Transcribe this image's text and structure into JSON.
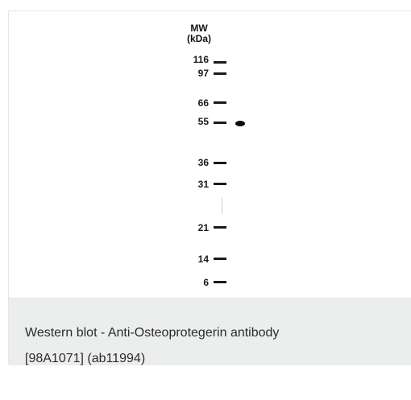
{
  "figure": {
    "mw_header": "MW",
    "unit_header": "(kDa)",
    "markers": [
      "116",
      "97",
      "66",
      "55",
      "36",
      "31",
      "21",
      "14",
      "6"
    ]
  },
  "caption": {
    "line1": "Western blot - Anti-Osteoprotegerin antibody",
    "line2": "[98A1071] (ab11994)"
  },
  "colors": {
    "caption_background": "#eceeee",
    "border": "#e3e6e6",
    "text": "#2b2b2b"
  }
}
